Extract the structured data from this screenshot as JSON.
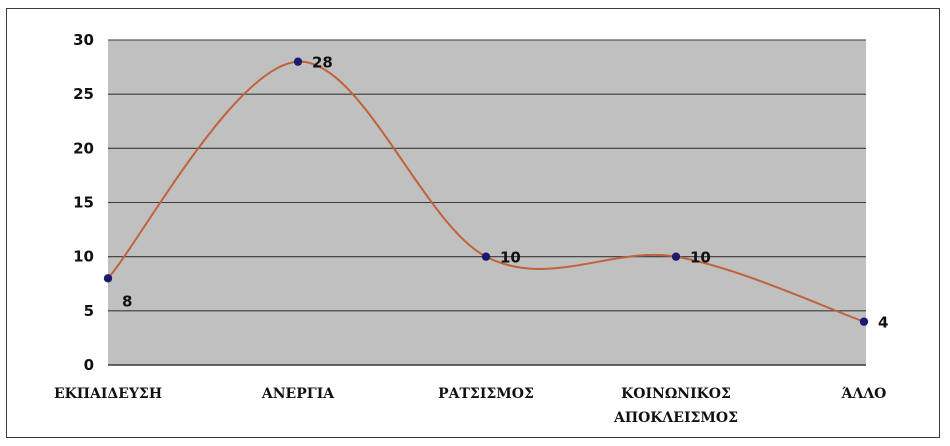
{
  "chart_data": {
    "type": "line",
    "categories": [
      [
        "ΕΚΠΑΙΔΕΥΣΗ"
      ],
      [
        "ΑΝΕΡΓΙΑ"
      ],
      [
        "ΡΑΤΣΙΣΜΟΣ"
      ],
      [
        "ΚΟΙΝΩΝΙΚΟΣ",
        "ΑΠΟΚΛΕΙΣΜΟΣ"
      ],
      [
        "ΆΛΛΟ"
      ]
    ],
    "values": [
      8,
      28,
      10,
      10,
      4
    ],
    "data_labels": [
      "8",
      "28",
      "10",
      "10",
      "4"
    ],
    "ylim": [
      0,
      30
    ],
    "yticks": [
      0,
      5,
      10,
      15,
      20,
      25,
      30
    ],
    "grid": "horizontal",
    "smoothed": true,
    "legend": "none",
    "colors": {
      "plot_background": "#c0c0c0",
      "gridline": "#3a3a3a",
      "line": "#c0623a",
      "marker": "#1a1a6e"
    }
  }
}
